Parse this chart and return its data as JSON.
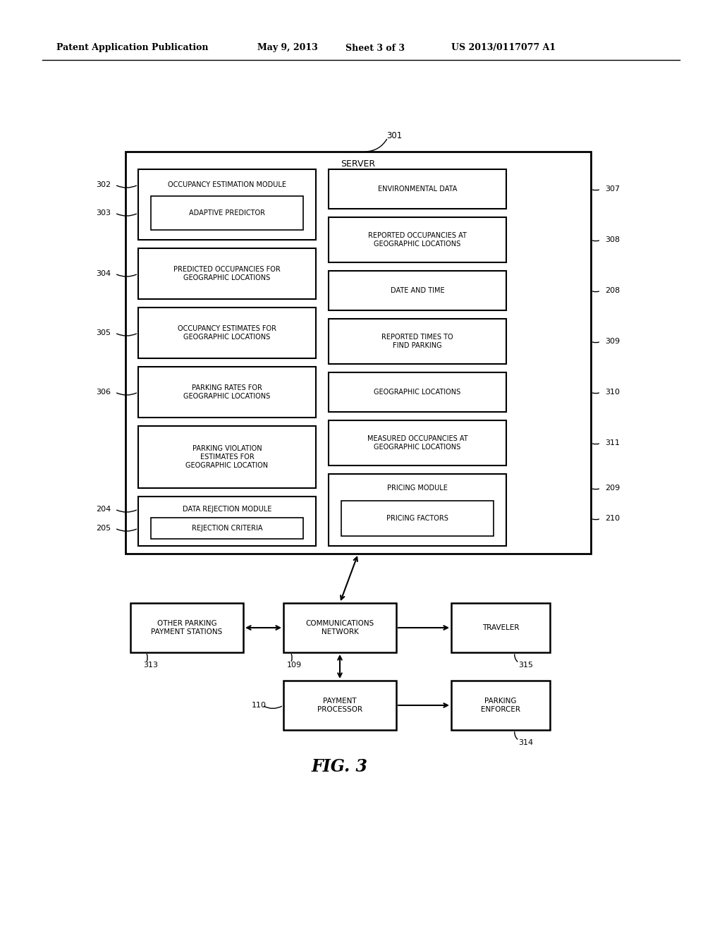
{
  "bg_color": "#ffffff",
  "header_text": "Patent Application Publication",
  "header_date": "May 9, 2013",
  "header_sheet": "Sheet 3 of 3",
  "header_patent": "US 2013/0117077 A1",
  "fig_label": "FIG. 3"
}
